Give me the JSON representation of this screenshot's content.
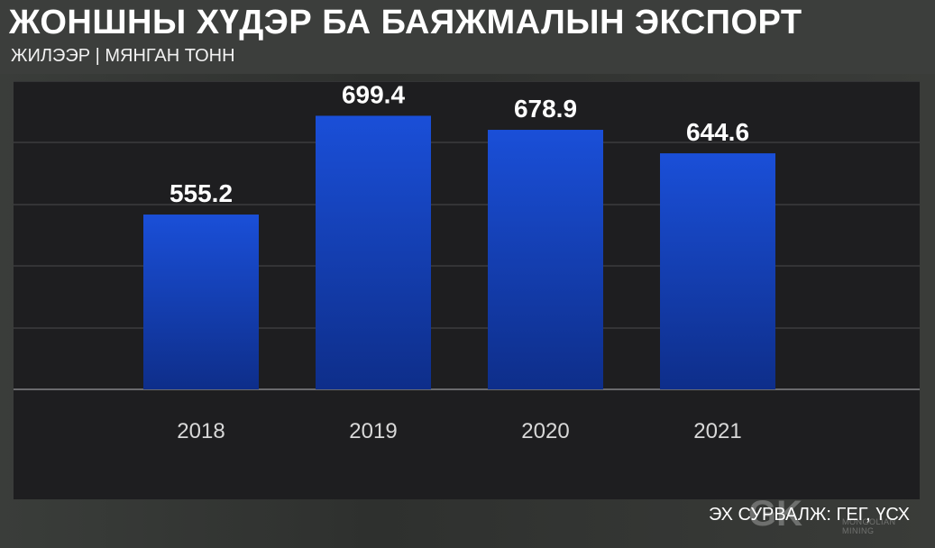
{
  "header": {
    "title": "ЖОНШНЫ ХҮДЭР БА БАЯЖМАЛЫН ЭКСПОРТ",
    "subtitle": "ЖИЛЭЭР | МЯНГАН ТОНН"
  },
  "chart_data": {
    "type": "bar",
    "title": "ЖОНШНЫ ХҮДЭР БА БАЯЖМАЛЫН ЭКСПОРТ",
    "subtitle": "ЖИЛЭЭР | МЯНГАН ТОНН",
    "categories": [
      "2018",
      "2019",
      "2020",
      "2021"
    ],
    "values": [
      555.2,
      699.4,
      678.9,
      644.6
    ],
    "value_labels": [
      "555.2",
      "699.4",
      "678.9",
      "644.6"
    ],
    "xlabel": "",
    "ylabel": "",
    "ylim": [
      300,
      750
    ],
    "grid": true,
    "legend": "none",
    "colors": {
      "bar_top": "#1a4fd8",
      "bar_bottom": "#0e2e8a",
      "grid": "#3b3b3e",
      "baseline": "#6a6a6d",
      "value_label": "#ffffff",
      "tick_label": "#d8d8d8"
    }
  },
  "footer": {
    "source": "ЭХ СУРВАЛЖ: ГЕГ, ҮСХ"
  },
  "watermark": {
    "logo": "GK",
    "text": "MONGOLIAN MINING"
  }
}
